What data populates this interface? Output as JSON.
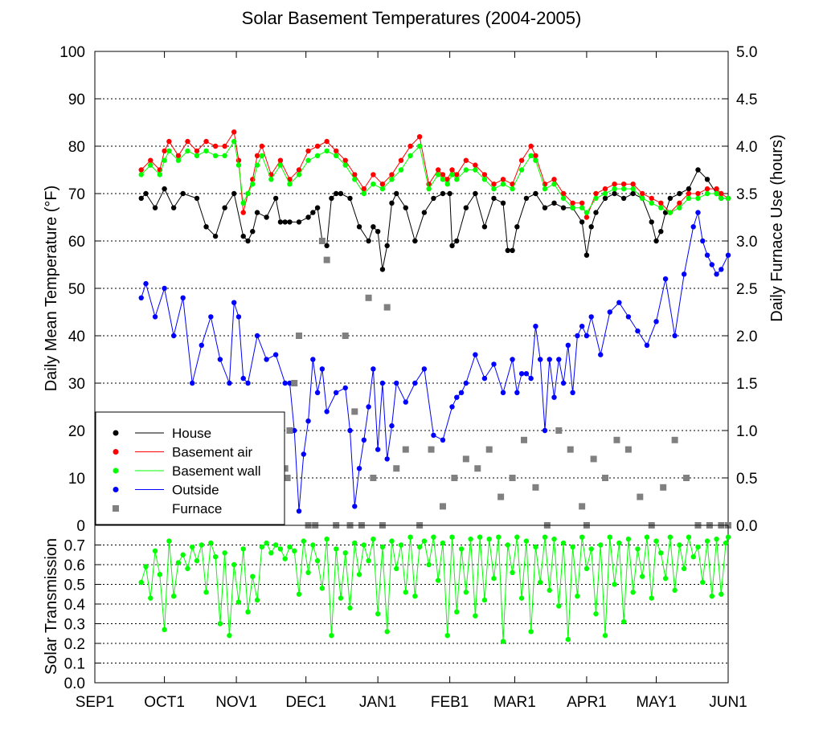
{
  "chart_data": {
    "title": "Solar Basement Temperatures (2004-2005)",
    "x_axis": {
      "ticks": [
        {
          "label": "SEP1",
          "day": 0
        },
        {
          "label": "OCT1",
          "day": 30
        },
        {
          "label": "NOV1",
          "day": 61
        },
        {
          "label": "DEC1",
          "day": 91
        },
        {
          "label": "JAN1",
          "day": 122
        },
        {
          "label": "FEB1",
          "day": 153
        },
        {
          "label": "MAR1",
          "day": 181
        },
        {
          "label": "APR1",
          "day": 212
        },
        {
          "label": "MAY1",
          "day": 242
        },
        {
          "label": "JUN1",
          "day": 273
        }
      ],
      "range": [
        0,
        273
      ]
    },
    "top_panel": {
      "type": "line",
      "ylabel": "Daily Mean Temperature (°F)",
      "ylim": [
        0,
        100
      ],
      "yticks": [
        "0",
        "10",
        "20",
        "30",
        "40",
        "50",
        "60",
        "70",
        "80",
        "90",
        "100"
      ],
      "y2label": "Daily Furnace Use (hours)",
      "y2lim": [
        0,
        5
      ],
      "y2ticks": [
        "0.0",
        "0.5",
        "1.0",
        "1.5",
        "2.0",
        "2.5",
        "3.0",
        "3.5",
        "4.0",
        "4.5",
        "5.0"
      ],
      "grid": true,
      "legend": {
        "placement": "bottom-left",
        "entries": [
          "House",
          "Basement air",
          "Basement wall",
          "Outside",
          "Furnace"
        ]
      },
      "series": [
        {
          "name": "House",
          "color": "#000000",
          "axis": "left",
          "x": [
            20,
            22,
            26,
            30,
            34,
            38,
            44,
            48,
            52,
            56,
            60,
            64,
            66,
            68,
            70,
            74,
            78,
            80,
            82,
            84,
            88,
            92,
            94,
            96,
            98,
            100,
            102,
            104,
            106,
            110,
            114,
            118,
            120,
            122,
            124,
            126,
            128,
            130,
            134,
            138,
            142,
            146,
            150,
            153,
            154,
            156,
            160,
            164,
            168,
            172,
            176,
            178,
            180,
            182,
            186,
            190,
            194,
            198,
            202,
            206,
            210,
            212,
            214,
            216,
            220,
            224,
            228,
            232,
            236,
            240,
            242,
            244,
            246,
            248,
            252,
            256,
            260,
            264,
            268,
            270,
            273
          ],
          "y": [
            69,
            70,
            67,
            71,
            67,
            70,
            69,
            63,
            61,
            67,
            70,
            61,
            60,
            62,
            66,
            65,
            69,
            64,
            64,
            64,
            64,
            65,
            66,
            67,
            60,
            59,
            69,
            70,
            70,
            69,
            63,
            60,
            63,
            62,
            54,
            59,
            68,
            70,
            67,
            60,
            66,
            69,
            70,
            70,
            59,
            60,
            67,
            70,
            63,
            69,
            68,
            58,
            58,
            63,
            69,
            70,
            67,
            68,
            67,
            67,
            64,
            57,
            63,
            66,
            69,
            70,
            69,
            70,
            69,
            64,
            60,
            62,
            66,
            69,
            70,
            71,
            75,
            73,
            70,
            69,
            69
          ]
        },
        {
          "name": "Basement air",
          "color": "#ff0000",
          "axis": "left",
          "x": [
            20,
            24,
            28,
            30,
            32,
            36,
            40,
            44,
            48,
            52,
            56,
            60,
            62,
            64,
            66,
            68,
            70,
            72,
            76,
            80,
            84,
            88,
            92,
            96,
            100,
            104,
            108,
            112,
            116,
            120,
            124,
            128,
            132,
            136,
            140,
            144,
            148,
            150,
            152,
            154,
            156,
            160,
            164,
            168,
            172,
            176,
            180,
            184,
            188,
            190,
            194,
            198,
            202,
            206,
            210,
            212,
            216,
            220,
            224,
            228,
            232,
            236,
            240,
            244,
            248,
            252,
            256,
            260,
            264,
            268,
            270,
            273
          ],
          "y": [
            75,
            77,
            75,
            79,
            81,
            78,
            81,
            79,
            81,
            80,
            80,
            83,
            77,
            66,
            70,
            73,
            78,
            80,
            74,
            77,
            73,
            75,
            79,
            80,
            81,
            79,
            77,
            74,
            71,
            74,
            72,
            74,
            77,
            80,
            82,
            72,
            75,
            74,
            73,
            75,
            74,
            77,
            76,
            74,
            72,
            73,
            72,
            77,
            80,
            78,
            72,
            73,
            70,
            68,
            68,
            65,
            70,
            71,
            72,
            72,
            72,
            70,
            69,
            68,
            66,
            68,
            70,
            70,
            71,
            71,
            70,
            69
          ]
        },
        {
          "name": "Basement wall",
          "color": "#00ff00",
          "axis": "left",
          "x": [
            20,
            24,
            28,
            30,
            32,
            36,
            40,
            44,
            48,
            52,
            56,
            60,
            62,
            64,
            66,
            68,
            70,
            72,
            76,
            80,
            84,
            88,
            92,
            96,
            100,
            104,
            108,
            112,
            116,
            120,
            124,
            128,
            132,
            136,
            140,
            144,
            148,
            150,
            152,
            154,
            156,
            160,
            164,
            168,
            172,
            176,
            180,
            184,
            188,
            190,
            194,
            198,
            202,
            206,
            210,
            212,
            216,
            220,
            224,
            228,
            232,
            236,
            240,
            244,
            248,
            252,
            256,
            260,
            264,
            268,
            270,
            273
          ],
          "y": [
            74,
            76,
            74,
            77,
            79,
            77,
            79,
            78,
            79,
            78,
            78,
            81,
            76,
            68,
            70,
            72,
            76,
            78,
            73,
            76,
            72,
            74,
            77,
            78,
            79,
            78,
            76,
            73,
            70,
            72,
            71,
            73,
            75,
            78,
            80,
            71,
            74,
            73,
            72,
            74,
            73,
            75,
            75,
            73,
            71,
            72,
            71,
            75,
            78,
            77,
            71,
            72,
            69,
            67,
            67,
            66,
            69,
            70,
            71,
            71,
            71,
            69,
            68,
            67,
            66,
            67,
            69,
            69,
            70,
            70,
            69,
            69
          ]
        },
        {
          "name": "Outside",
          "color": "#0000ff",
          "axis": "left",
          "x": [
            20,
            22,
            26,
            30,
            34,
            38,
            42,
            46,
            50,
            54,
            58,
            60,
            62,
            64,
            66,
            70,
            74,
            78,
            82,
            84,
            86,
            88,
            90,
            92,
            94,
            96,
            98,
            100,
            104,
            108,
            110,
            112,
            114,
            116,
            118,
            120,
            122,
            124,
            126,
            128,
            130,
            134,
            138,
            142,
            146,
            150,
            154,
            156,
            158,
            160,
            164,
            168,
            172,
            176,
            180,
            182,
            184,
            186,
            188,
            190,
            192,
            194,
            196,
            198,
            200,
            202,
            204,
            206,
            208,
            210,
            212,
            214,
            218,
            222,
            226,
            230,
            234,
            238,
            242,
            246,
            250,
            254,
            258,
            260,
            262,
            264,
            266,
            268,
            270,
            273
          ],
          "y": [
            48,
            51,
            44,
            50,
            40,
            48,
            30,
            38,
            44,
            35,
            30,
            47,
            44,
            31,
            30,
            40,
            35,
            36,
            30,
            30,
            20,
            3,
            15,
            22,
            35,
            28,
            33,
            24,
            28,
            29,
            20,
            4,
            12,
            18,
            25,
            33,
            16,
            30,
            14,
            21,
            30,
            26,
            30,
            33,
            19,
            18,
            25,
            27,
            28,
            30,
            36,
            31,
            34,
            28,
            35,
            28,
            32,
            32,
            31,
            42,
            35,
            20,
            35,
            27,
            35,
            30,
            38,
            28,
            40,
            42,
            40,
            44,
            36,
            45,
            47,
            44,
            41,
            38,
            43,
            52,
            40,
            53,
            63,
            66,
            60,
            57,
            55,
            53,
            54,
            57
          ]
        },
        {
          "name": "Furnace",
          "color": "#808080",
          "axis": "right",
          "marker": "square",
          "x": [
            80,
            82,
            83,
            84,
            86,
            88,
            92,
            95,
            98,
            100,
            104,
            108,
            110,
            112,
            115,
            118,
            120,
            124,
            126,
            130,
            134,
            140,
            145,
            150,
            155,
            160,
            165,
            170,
            175,
            180,
            185,
            190,
            195,
            200,
            205,
            210,
            212,
            215,
            220,
            225,
            230,
            235,
            240,
            245,
            250,
            255,
            260,
            265,
            270,
            273
          ],
          "y": [
            0.3,
            0.6,
            0.5,
            1.0,
            1.5,
            2.0,
            0.0,
            0.0,
            3.0,
            2.8,
            0.0,
            2.0,
            0.0,
            1.2,
            0.0,
            2.4,
            0.5,
            0.0,
            2.3,
            0.6,
            0.8,
            0.0,
            0.8,
            0.2,
            0.5,
            0.7,
            0.6,
            0.8,
            0.3,
            0.5,
            0.9,
            0.4,
            0.0,
            1.0,
            0.8,
            0.2,
            0.0,
            0.7,
            0.5,
            0.9,
            0.8,
            0.3,
            0.0,
            0.4,
            0.9,
            0.5,
            0.0,
            0.0,
            0.0,
            0.0
          ]
        }
      ]
    },
    "bottom_panel": {
      "type": "line",
      "ylabel": "Solar Transmission",
      "ylim": [
        0,
        0.8
      ],
      "yticks": [
        "0.0",
        "0.1",
        "0.2",
        "0.3",
        "0.4",
        "0.5",
        "0.6",
        "0.7"
      ],
      "grid": true,
      "series": [
        {
          "name": "Solar Transmission",
          "color": "#00ff00",
          "x": [
            20,
            22,
            24,
            26,
            28,
            30,
            32,
            34,
            36,
            38,
            40,
            42,
            44,
            46,
            48,
            50,
            52,
            54,
            56,
            58,
            60,
            62,
            64,
            66,
            68,
            70,
            72,
            74,
            76,
            78,
            80,
            82,
            84,
            86,
            88,
            90,
            92,
            94,
            96,
            98,
            100,
            102,
            104,
            106,
            108,
            110,
            112,
            114,
            116,
            118,
            120,
            122,
            124,
            126,
            128,
            130,
            132,
            134,
            136,
            138,
            140,
            142,
            144,
            146,
            148,
            150,
            152,
            154,
            156,
            158,
            160,
            162,
            164,
            166,
            168,
            170,
            172,
            174,
            176,
            178,
            180,
            182,
            184,
            186,
            188,
            190,
            192,
            194,
            196,
            198,
            200,
            202,
            204,
            206,
            208,
            210,
            212,
            214,
            216,
            218,
            220,
            222,
            224,
            226,
            228,
            230,
            232,
            234,
            236,
            238,
            240,
            242,
            244,
            246,
            248,
            250,
            252,
            254,
            256,
            258,
            260,
            262,
            264,
            266,
            268,
            270,
            272,
            273
          ],
          "y": [
            0.51,
            0.59,
            0.43,
            0.67,
            0.55,
            0.27,
            0.72,
            0.44,
            0.61,
            0.65,
            0.58,
            0.69,
            0.62,
            0.7,
            0.46,
            0.71,
            0.64,
            0.3,
            0.66,
            0.24,
            0.6,
            0.41,
            0.68,
            0.36,
            0.54,
            0.42,
            0.69,
            0.71,
            0.66,
            0.7,
            0.68,
            0.63,
            0.69,
            0.67,
            0.45,
            0.72,
            0.56,
            0.7,
            0.62,
            0.48,
            0.73,
            0.24,
            0.68,
            0.43,
            0.66,
            0.38,
            0.71,
            0.55,
            0.7,
            0.62,
            0.73,
            0.35,
            0.69,
            0.26,
            0.72,
            0.58,
            0.7,
            0.46,
            0.74,
            0.44,
            0.69,
            0.72,
            0.6,
            0.74,
            0.52,
            0.71,
            0.24,
            0.74,
            0.36,
            0.68,
            0.46,
            0.73,
            0.34,
            0.74,
            0.42,
            0.73,
            0.53,
            0.74,
            0.21,
            0.7,
            0.56,
            0.74,
            0.43,
            0.72,
            0.26,
            0.69,
            0.51,
            0.74,
            0.47,
            0.73,
            0.39,
            0.71,
            0.22,
            0.69,
            0.44,
            0.74,
            0.58,
            0.68,
            0.35,
            0.7,
            0.24,
            0.74,
            0.5,
            0.71,
            0.31,
            0.73,
            0.46,
            0.68,
            0.54,
            0.74,
            0.43,
            0.72,
            0.66,
            0.53,
            0.74,
            0.47,
            0.7,
            0.58,
            0.74,
            0.64,
            0.69,
            0.51,
            0.72,
            0.44,
            0.73,
            0.45,
            0.71,
            0.74
          ]
        }
      ]
    }
  }
}
